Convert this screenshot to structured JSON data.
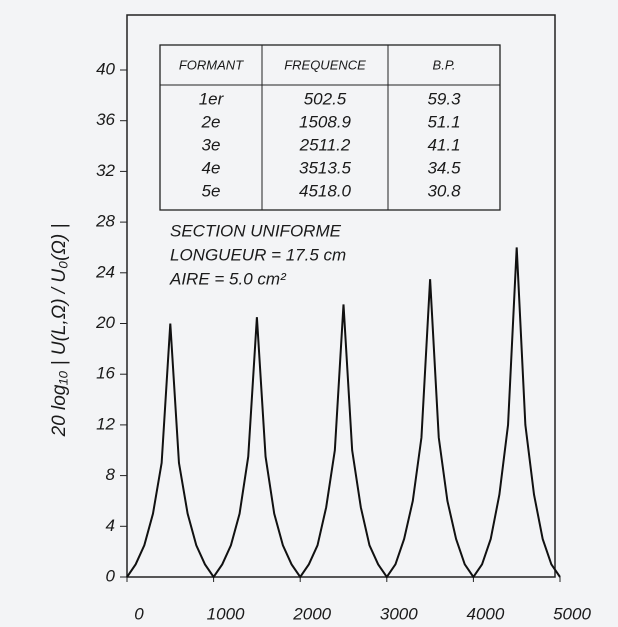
{
  "chart_data": {
    "type": "line",
    "ylabel": "20 log₁₀ | U(L,Ω) / U₀(Ω) |",
    "x": [
      0,
      100,
      200,
      300,
      400,
      500,
      600,
      700,
      800,
      900,
      1000,
      1100,
      1200,
      1300,
      1400,
      1500,
      1600,
      1700,
      1800,
      1900,
      2000,
      2100,
      2200,
      2300,
      2400,
      2500,
      2600,
      2700,
      2800,
      2900,
      3000,
      3100,
      3200,
      3300,
      3400,
      3500,
      3600,
      3700,
      3800,
      3900,
      4000,
      4100,
      4200,
      4300,
      4400,
      4500,
      4600,
      4700,
      4800,
      4900,
      5000
    ],
    "values": [
      0,
      1,
      2.5,
      5,
      9,
      20,
      9,
      5,
      2.5,
      1,
      0,
      1,
      2.5,
      5,
      9.5,
      20.5,
      9.5,
      5,
      2.5,
      1,
      0,
      1,
      2.5,
      5.5,
      10,
      21.5,
      10,
      5.5,
      2.5,
      1,
      0,
      1,
      3,
      6,
      11,
      23.5,
      11,
      6,
      3,
      1,
      0,
      1,
      3,
      6.5,
      12,
      26,
      12,
      6.5,
      3,
      1,
      0
    ],
    "color": "#111111",
    "xlim": [
      0,
      5000
    ],
    "xticks": [
      0,
      1000,
      2000,
      3000,
      4000,
      5000
    ],
    "ylim": [
      0,
      40
    ],
    "yticks": [
      0,
      4,
      8,
      12,
      16,
      20,
      24,
      28,
      32,
      36,
      40
    ],
    "table": {
      "header": [
        "FORMANT",
        "FREQUENCE",
        "B.P."
      ],
      "rows": [
        [
          "1er",
          "502.5",
          "59.3"
        ],
        [
          "2e",
          "1508.9",
          "51.1"
        ],
        [
          "3e",
          "2511.2",
          "41.1"
        ],
        [
          "4e",
          "3513.5",
          "34.5"
        ],
        [
          "5e",
          "4518.0",
          "30.8"
        ]
      ]
    },
    "annotations": [
      "SECTION UNIFORME",
      "LONGUEUR = 17.5 cm",
      "AIRE = 5.0 cm²"
    ]
  }
}
